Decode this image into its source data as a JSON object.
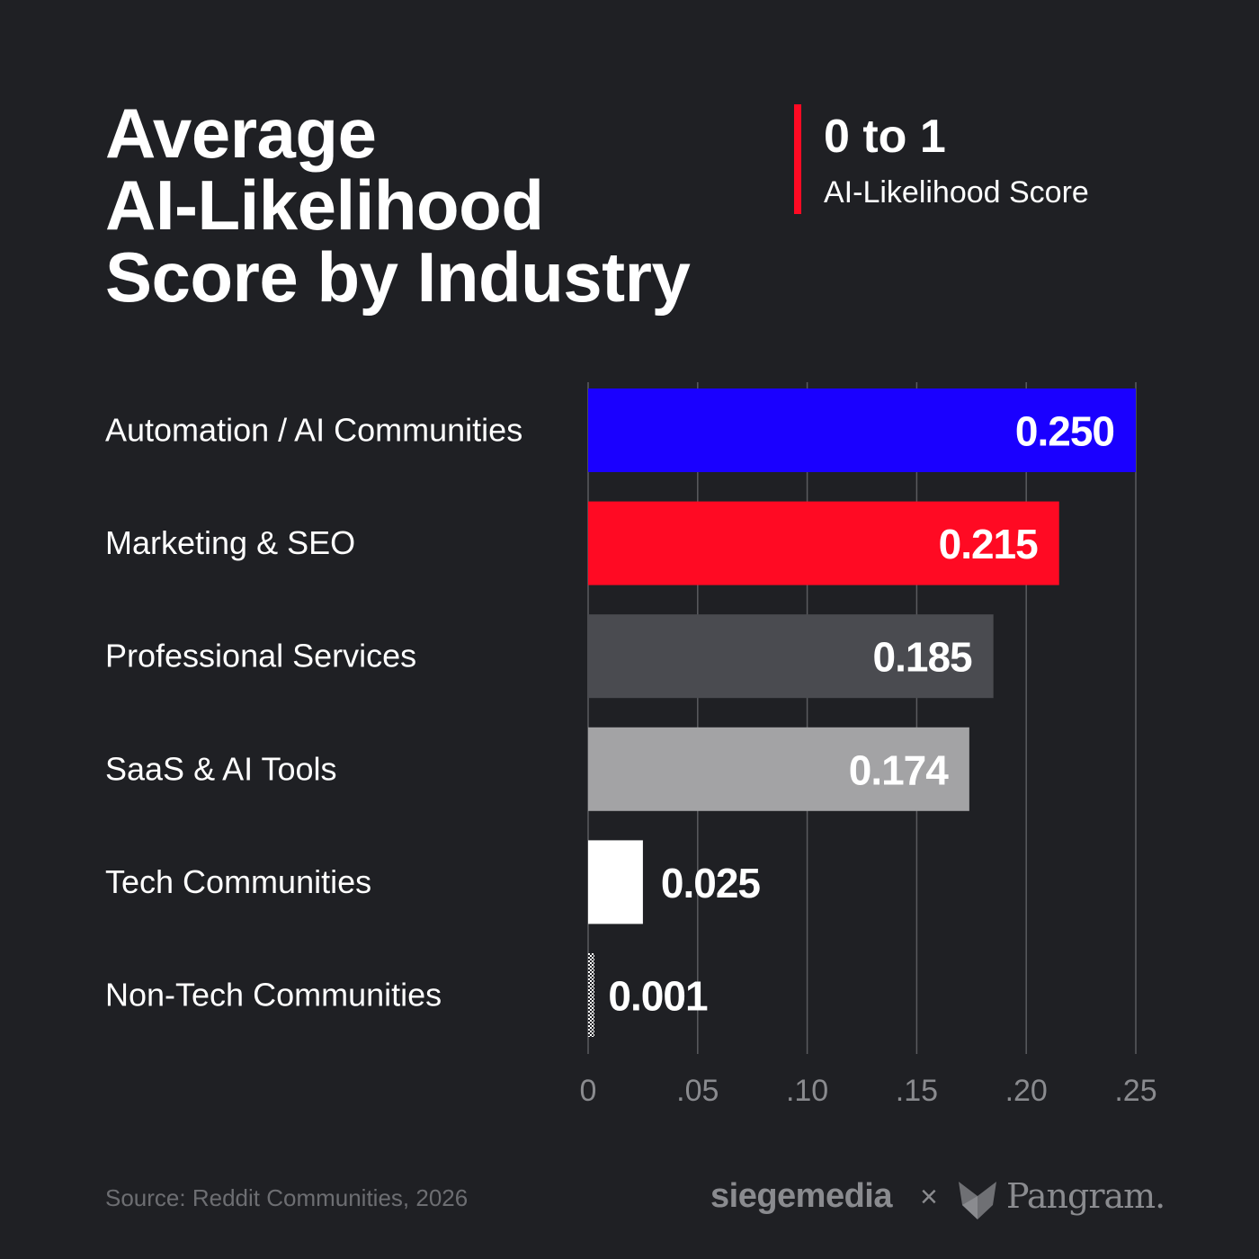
{
  "title_lines": [
    "Average",
    "AI-Likelihood",
    "Score by Industry"
  ],
  "legend": {
    "range": "0 to 1",
    "label": "AI-Likelihood Score",
    "accent": "#ff0a23"
  },
  "chart_data": {
    "type": "bar",
    "orientation": "horizontal",
    "categories": [
      "Automation / AI Communities",
      "Marketing & SEO",
      "Professional Services",
      "SaaS & AI Tools",
      "Tech Communities",
      "Non-Tech Communities"
    ],
    "values": [
      0.25,
      0.215,
      0.185,
      0.174,
      0.025,
      0.001
    ],
    "value_labels": [
      "0.250",
      "0.215",
      "0.185",
      "0.174",
      "0.025",
      "0.001"
    ],
    "colors": [
      "#1a00ff",
      "#ff0a23",
      "#4a4b50",
      "#a3a3a5",
      "#ffffff",
      "#cfcfcf"
    ],
    "x_ticks": [
      0,
      0.05,
      0.1,
      0.15,
      0.2,
      0.25
    ],
    "x_tick_labels": [
      "0",
      ".05",
      ".10",
      ".15",
      ".20",
      ".25"
    ],
    "xlim": [
      0,
      0.25
    ],
    "grid": true
  },
  "footer": {
    "source": "Source: Reddit Communities, 2026",
    "brand_left": "siegemedia",
    "separator": "×",
    "brand_right": "Pangram."
  }
}
